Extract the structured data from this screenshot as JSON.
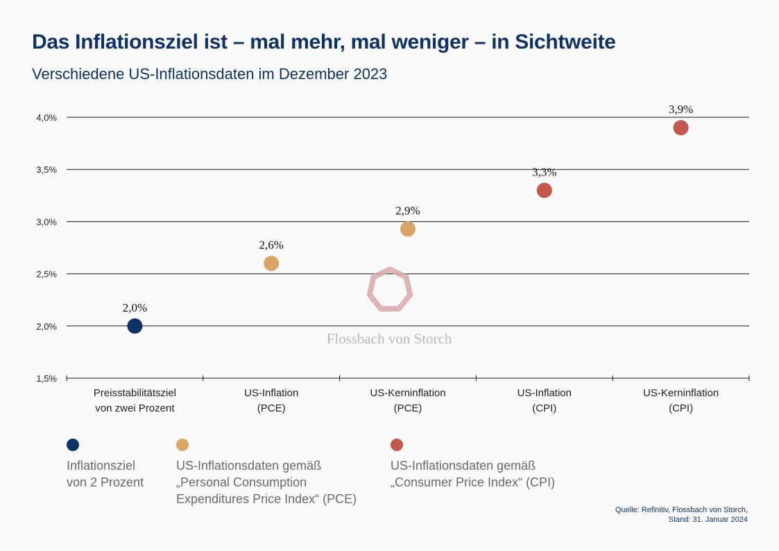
{
  "header": {
    "title": "Das Inflationsziel ist – mal mehr, mal weniger – in Sichtweite",
    "subtitle": "Verschiedene US-Inflationsdaten im Dezember 2023"
  },
  "colors": {
    "navy": "#0e3264",
    "pce": "#dba565",
    "cpi": "#c4584a",
    "watermark": "#d9a9a9"
  },
  "chart_data": {
    "type": "scatter",
    "title": "Das Inflationsziel ist – mal mehr, mal weniger – in Sichtweite",
    "subtitle": "Verschiedene US-Inflationsdaten im Dezember 2023",
    "xlabel": "",
    "ylabel": "",
    "ylim": [
      1.5,
      4.0
    ],
    "yticks": [
      1.5,
      2.0,
      2.5,
      3.0,
      3.5,
      4.0
    ],
    "ytick_labels": [
      "1,5%",
      "2,0%",
      "2,5%",
      "3,0%",
      "3,5%",
      "4,0%"
    ],
    "grid": true,
    "categories": [
      "Preisstabilitätsziel\nvon zwei Prozent",
      "US-Inflation\n(PCE)",
      "US-Kerninflation\n(PCE)",
      "US-Inflation\n(CPI)",
      "US-Kerninflation\n(CPI)"
    ],
    "points": [
      {
        "category": 0,
        "value": 2.0,
        "label": "2,0%",
        "group": "target"
      },
      {
        "category": 1,
        "value": 2.6,
        "label": "2,6%",
        "group": "pce"
      },
      {
        "category": 2,
        "value": 2.93,
        "label": "2,9%",
        "group": "pce"
      },
      {
        "category": 3,
        "value": 3.3,
        "label": "3,3%",
        "group": "cpi"
      },
      {
        "category": 4,
        "value": 3.9,
        "label": "3,9%",
        "group": "cpi"
      }
    ],
    "watermark": "Flossbach von Storch"
  },
  "legend": [
    {
      "group": "target",
      "text": "Inflationsziel\nvon 2 Prozent"
    },
    {
      "group": "pce",
      "text": "US-Inflationsdaten gemäß\n„Personal Consumption\nExpenditures Price Index“ (PCE)"
    },
    {
      "group": "cpi",
      "text": "US-Inflationsdaten gemäß\n„Consumer Price Index“ (CPI)"
    }
  ],
  "source": "Quelle: Refinitiv, Flossbach von Storch,\nStand: 31. Januar 2024"
}
